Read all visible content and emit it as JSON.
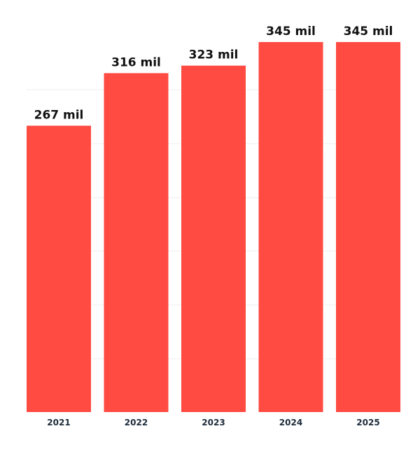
{
  "chart_data": {
    "type": "bar",
    "categories": [
      "2021",
      "2022",
      "2023",
      "2024",
      "2025"
    ],
    "values": [
      267,
      316,
      323,
      345,
      345
    ],
    "data_labels": [
      "267 mil",
      "316 mil",
      "323 mil",
      "345 mil",
      "345 mil"
    ],
    "title": "",
    "xlabel": "",
    "ylabel": "",
    "ylim": [
      0,
      345
    ],
    "grid": true,
    "legend": "none",
    "bar_color": "#ff4b42"
  }
}
